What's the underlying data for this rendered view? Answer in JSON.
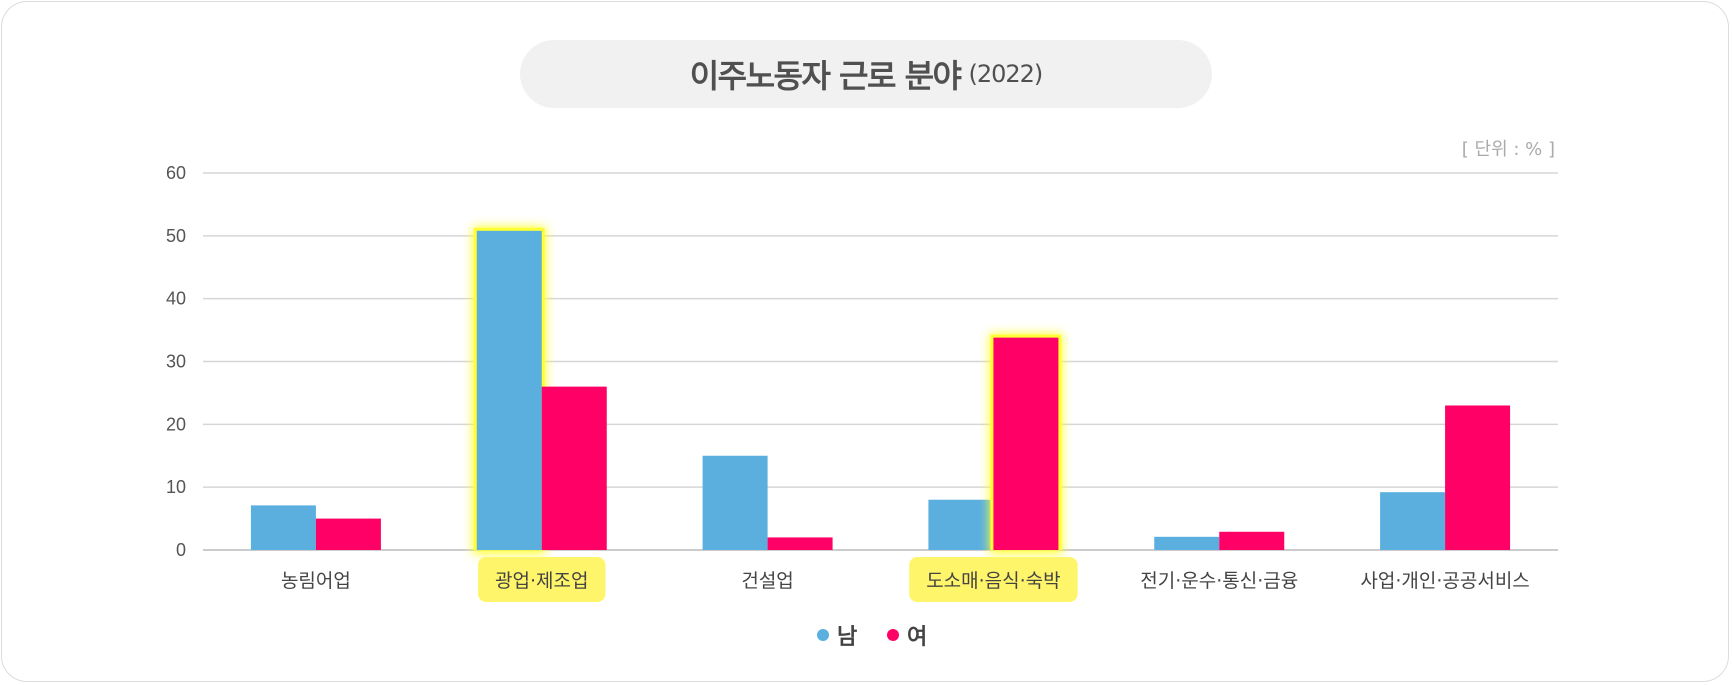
{
  "title": {
    "main": "이주노동자 근로 분야",
    "year": "(2022)"
  },
  "unit_label": "[ 단위 : % ]",
  "colors": {
    "male": "#5aafdf",
    "female": "#ff0066",
    "highlight_glow": "#ffff33",
    "label_highlight": "#fff56a"
  },
  "chart_data": {
    "type": "bar",
    "categories": [
      "농림어업",
      "광업·제조업",
      "건설업",
      "도소매·음식·숙박",
      "전기·운수·통신·금융",
      "사업·개인·공공서비스"
    ],
    "series": [
      {
        "name": "남",
        "values": [
          7.1,
          50.8,
          15.0,
          8.0,
          2.1,
          9.2
        ]
      },
      {
        "name": "여",
        "values": [
          5.0,
          26.0,
          2.0,
          33.8,
          2.9,
          23.0
        ]
      }
    ],
    "yticks": [
      "0",
      "10",
      "20",
      "30",
      "40",
      "50",
      "60"
    ],
    "ylim": [
      0,
      60
    ],
    "grid": true,
    "legend_position": "bottom-center",
    "highlighted_categories": [
      "광업·제조업",
      "도소매·음식·숙박"
    ],
    "highlighted_bars": [
      {
        "category": "광업·제조업",
        "series": "남"
      },
      {
        "category": "도소매·음식·숙박",
        "series": "여"
      }
    ]
  }
}
